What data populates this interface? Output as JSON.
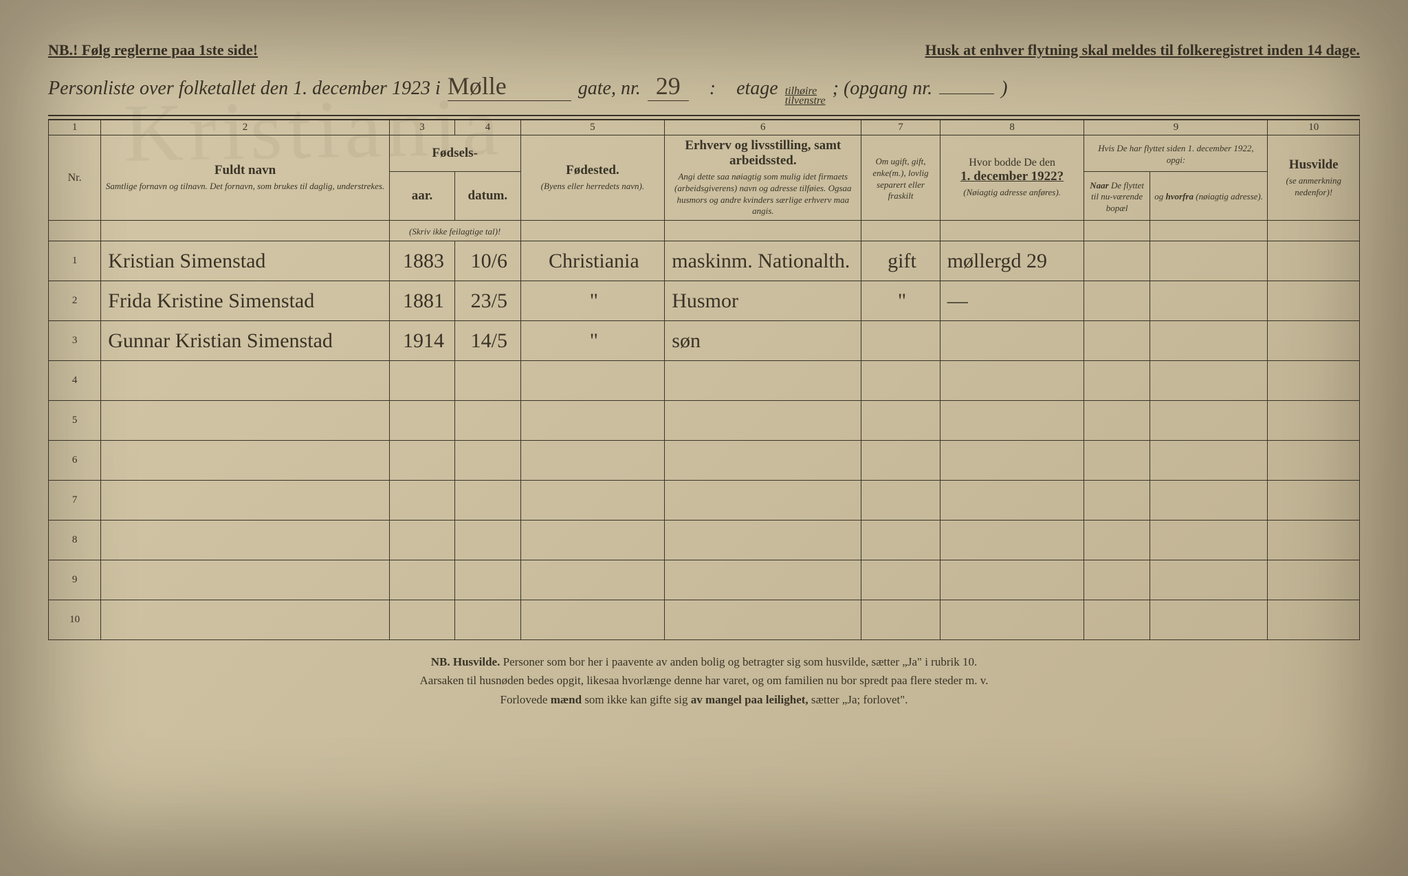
{
  "header": {
    "nb": "NB.!  Følg reglerne paa 1ste side!",
    "reminder": "Husk at enhver flytning skal meldes til folkeregistret inden 14 dage.",
    "title_prefix": "Personliste over folketallet den 1. december 1923 i",
    "street_hw": "Mølle",
    "gate_label": "gate, nr.",
    "gate_nr": "29",
    "colon": ":",
    "etage_label": "etage",
    "etage_tilhoire": "tilhøire",
    "etage_tilvenstre": "tilvenstre",
    "opgang_label": "; (opgang nr.",
    "close_paren": ")"
  },
  "columns": {
    "nums": [
      "1",
      "2",
      "3",
      "4",
      "5",
      "6",
      "7",
      "8",
      "9",
      "10"
    ],
    "nr": "Nr.",
    "c2_title": "Fuldt navn",
    "c2_sub": "Samtlige fornavn og tilnavn.  Det fornavn, som brukes til daglig, understrekes.",
    "c34_title": "Fødsels-",
    "c3": "aar.",
    "c4": "datum.",
    "c34_sub": "(Skriv ikke feilagtige tal)!",
    "c5_title": "Fødested.",
    "c5_sub": "(Byens eller herredets navn).",
    "c6_title": "Erhverv og livsstilling, samt arbeidssted.",
    "c6_sub": "Angi dette saa nøiagtig som mulig idet firmaets (arbeidsgiverens) navn og adresse tilføies. Ogsaa husmors og andre kvinders særlige erhverv maa angis.",
    "c7": "Om ugift, gift, enke(m.), lovlig separert eller fraskilt",
    "c8_title": "Hvor bodde De den",
    "c8_date": "1. december 1922?",
    "c8_sub": "(Nøiagtig adresse anføres).",
    "c9_title": "Hvis De har flyttet siden 1. december 1922, opgi:",
    "c9a": "Naar De flyttet til nu-værende bopæl",
    "c9b": "og hvorfra (nøiagtig adresse).",
    "c10_title": "Husvilde",
    "c10_sub": "(se anmerkning nedenfor)!"
  },
  "rows": [
    {
      "nr": "1",
      "name": "Kristian Simenstad",
      "year": "1883",
      "date": "10/6",
      "place": "Christiania",
      "job": "maskinm. Nationalth.",
      "status": "gift",
      "addr": "møllergd 29"
    },
    {
      "nr": "2",
      "name": "Frida Kristine Simenstad",
      "year": "1881",
      "date": "23/5",
      "place": "\"",
      "job": "Husmor",
      "status": "\"",
      "addr": "—"
    },
    {
      "nr": "3",
      "name": "Gunnar Kristian Simenstad",
      "year": "1914",
      "date": "14/5",
      "place": "\"",
      "job": "søn",
      "status": "",
      "addr": ""
    },
    {
      "nr": "4"
    },
    {
      "nr": "5"
    },
    {
      "nr": "6"
    },
    {
      "nr": "7"
    },
    {
      "nr": "8"
    },
    {
      "nr": "9"
    },
    {
      "nr": "10"
    }
  ],
  "footnote": {
    "l1a": "NB.  Husvilde.",
    "l1b": "  Personer som bor her i paavente av anden bolig og betragter sig som husvilde, sætter „Ja\" i rubrik 10.",
    "l2": "Aarsaken til husnøden bedes opgit, likesaa hvorlænge denne har varet, og om familien nu bor spredt paa flere steder m. v.",
    "l3a": "Forlovede mænd som ikke kan gifte sig av mangel paa leilighet, sætter „Ja; forlovet\"."
  },
  "colors": {
    "paper": "#cabf9f",
    "ink": "#3a3428",
    "handwriting": "#3a3226"
  }
}
